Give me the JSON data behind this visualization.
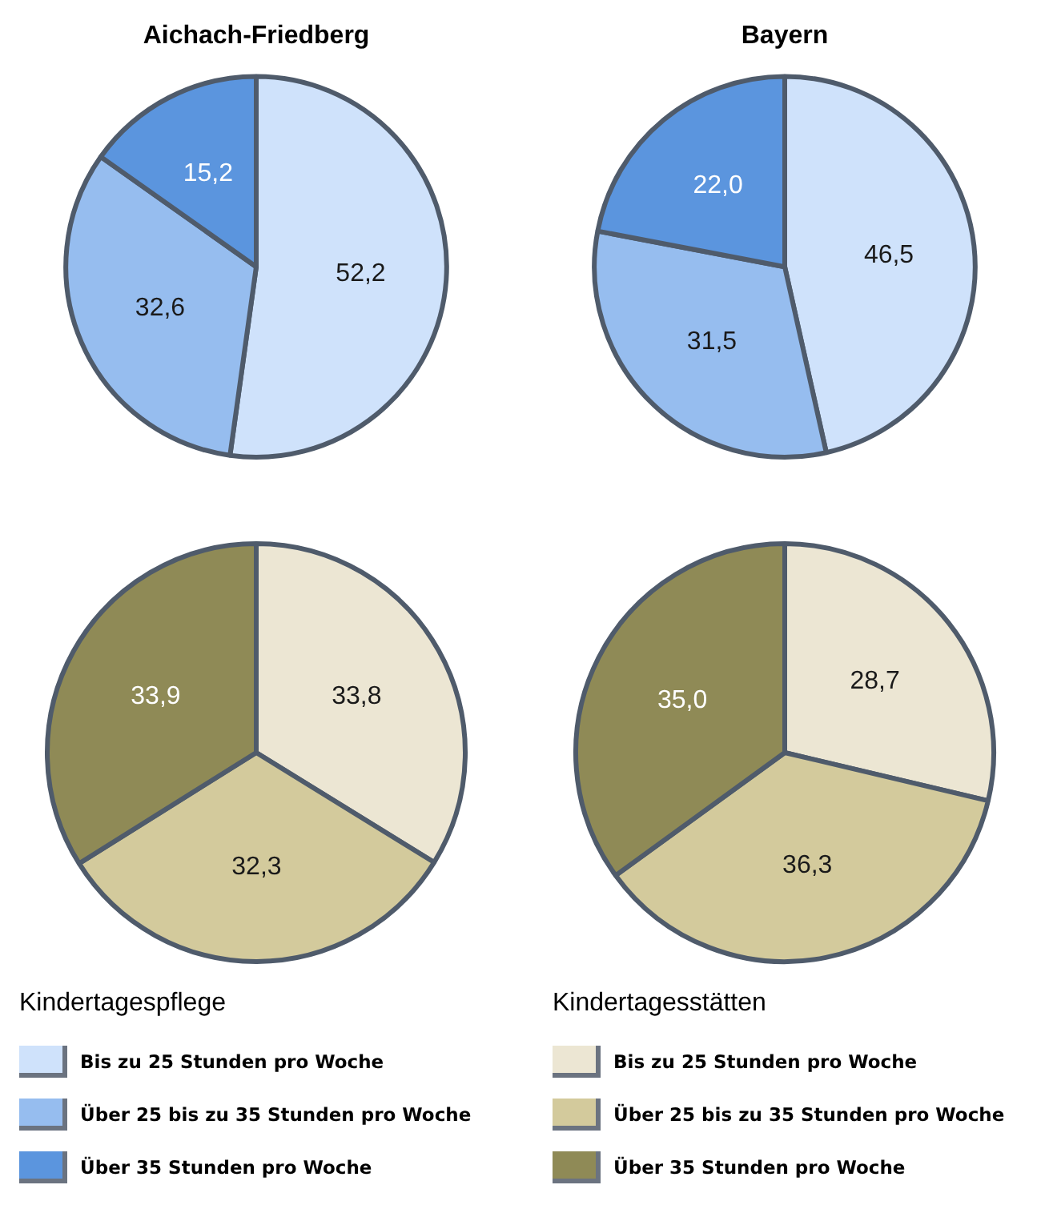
{
  "chart_data": [
    {
      "type": "pie",
      "title": "Aichach-Friedberg",
      "legend_title": "Kindertagespflege",
      "legend": "bottom",
      "categories": [
        "Bis zu 25 Stunden pro Woche",
        "Über 25 bis zu 35 Stunden pro Woche",
        "Über 35 Stunden pro Woche"
      ],
      "values": [
        52.2,
        32.6,
        15.2
      ],
      "value_labels": [
        "52,2",
        "32,6",
        "15,2"
      ],
      "colors": [
        "#cfe2fb",
        "#96bdef",
        "#5b95de"
      ]
    },
    {
      "type": "pie",
      "title": "Bayern",
      "categories": [
        null,
        null,
        null
      ],
      "values": [
        46.5,
        31.5,
        22.0
      ],
      "value_labels": [
        "46,5",
        "31,5",
        "22,0"
      ],
      "colors": [
        "#cfe2fb",
        "#96bdef",
        "#5b95de"
      ]
    },
    {
      "type": "pie",
      "legend_title": "Kindertagesstätten",
      "legend": "bottom",
      "categories": [
        "Bis zu 25 Stunden pro Woche",
        "Über 25 bis zu 35 Stunden pro Woche",
        "Über 35 Stunden pro Woche"
      ],
      "values": [
        33.8,
        32.3,
        33.9
      ],
      "value_labels": [
        "33,8",
        "32,3",
        "33,9"
      ],
      "colors": [
        "#ece6d3",
        "#d3ca9c",
        "#8f8a56"
      ]
    },
    {
      "type": "pie",
      "categories": [
        null,
        null,
        null
      ],
      "values": [
        28.7,
        36.3,
        35.0
      ],
      "value_labels": [
        "28,7",
        "36,3",
        "35,0"
      ],
      "colors": [
        "#ece6d3",
        "#d3ca9c",
        "#8f8a56"
      ]
    }
  ]
}
